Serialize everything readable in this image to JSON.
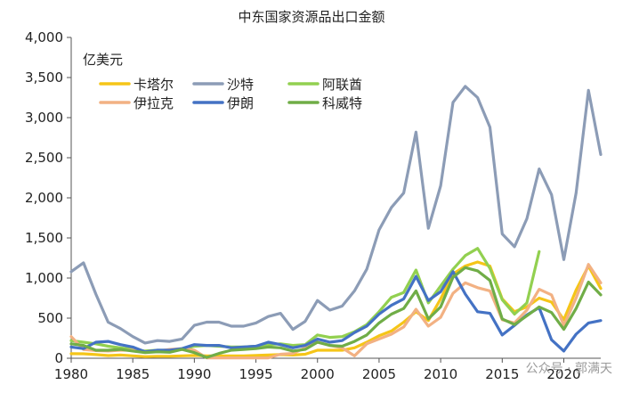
{
  "title": "中东国家资源品出口金额",
  "unit_label": "亿美元",
  "watermark": "公众号 · 郭满天",
  "chart_data": {
    "type": "line",
    "title": "中东国家资源品出口金额",
    "ylabel": "亿美元",
    "xlim": [
      1980,
      2023
    ],
    "ylim": [
      0,
      4000
    ],
    "x_ticks": [
      1980,
      1985,
      1990,
      1995,
      2000,
      2005,
      2010,
      2015,
      2020
    ],
    "y_ticks": [
      0,
      500,
      1000,
      1500,
      2000,
      2500,
      3000,
      3500,
      4000
    ],
    "y_tick_labels": [
      "0",
      "500",
      "1,000",
      "1,500",
      "2,000",
      "2,500",
      "3,000",
      "3,500",
      "4,000"
    ],
    "grid": false,
    "legend_position": "top-left",
    "series": [
      {
        "name": "卡塔尔",
        "color": "#f5c518",
        "x": [
          1980,
          1981,
          1982,
          1983,
          1984,
          1985,
          1986,
          1987,
          1988,
          1989,
          1990,
          1991,
          1992,
          1993,
          1994,
          1995,
          1996,
          1997,
          1998,
          1999,
          2000,
          2001,
          2002,
          2003,
          2004,
          2005,
          2006,
          2007,
          2008,
          2009,
          2010,
          2011,
          2012,
          2013,
          2014,
          2015,
          2016,
          2017,
          2018,
          2019,
          2020,
          2021,
          2022,
          2023
        ],
        "y": [
          57,
          56,
          45,
          33,
          40,
          30,
          20,
          25,
          25,
          30,
          35,
          30,
          30,
          30,
          30,
          35,
          40,
          45,
          40,
          50,
          100,
          100,
          100,
          130,
          200,
          280,
          340,
          450,
          580,
          470,
          740,
          1050,
          1150,
          1200,
          1150,
          740,
          580,
          640,
          750,
          700,
          480,
          850,
          1150,
          870
        ]
      },
      {
        "name": "沙特",
        "color": "#8c9cb6",
        "x": [
          1980,
          1981,
          1982,
          1983,
          1984,
          1985,
          1986,
          1987,
          1988,
          1989,
          1990,
          1991,
          1992,
          1993,
          1994,
          1995,
          1996,
          1997,
          1998,
          1999,
          2000,
          2001,
          2002,
          2003,
          2004,
          2005,
          2006,
          2007,
          2008,
          2009,
          2010,
          2011,
          2012,
          2013,
          2014,
          2015,
          2016,
          2017,
          2018,
          2019,
          2020,
          2021,
          2022,
          2023
        ],
        "y": [
          1080,
          1190,
          800,
          450,
          370,
          270,
          190,
          220,
          210,
          240,
          410,
          450,
          450,
          400,
          400,
          440,
          520,
          560,
          360,
          460,
          720,
          600,
          650,
          840,
          1110,
          1600,
          1880,
          2060,
          2820,
          1620,
          2150,
          3190,
          3390,
          3250,
          2880,
          1550,
          1390,
          1740,
          2360,
          2040,
          1230,
          2060,
          3340,
          2540
        ]
      },
      {
        "name": "阿联酋",
        "color": "#92d050",
        "x": [
          1980,
          1981,
          1982,
          1983,
          1984,
          1985,
          1986,
          1987,
          1988,
          1989,
          1990,
          1991,
          1992,
          1993,
          1994,
          1995,
          1996,
          1997,
          1998,
          1999,
          2000,
          2001,
          2002,
          2003,
          2004,
          2005,
          2006,
          2007,
          2008,
          2009,
          2010,
          2011,
          2012,
          2013,
          2014,
          2015,
          2016,
          2017,
          2018
        ],
        "y": [
          220,
          200,
          180,
          150,
          130,
          110,
          90,
          100,
          100,
          110,
          150,
          160,
          150,
          140,
          140,
          150,
          170,
          180,
          160,
          170,
          290,
          260,
          270,
          330,
          420,
          580,
          760,
          820,
          1100,
          690,
          900,
          1110,
          1280,
          1370,
          1120,
          730,
          550,
          690,
          1330
        ]
      },
      {
        "name": "伊拉克",
        "color": "#f2b183",
        "x": [
          1980,
          1981,
          1982,
          1983,
          1984,
          1985,
          1986,
          1987,
          1988,
          1989,
          1990,
          1991,
          1992,
          1993,
          1994,
          1995,
          1996,
          1997,
          1998,
          1999,
          2000,
          2001,
          2002,
          2003,
          2004,
          2005,
          2006,
          2007,
          2008,
          2009,
          2010,
          2011,
          2012,
          2013,
          2014,
          2015,
          2016,
          2017,
          2018,
          2019,
          2020,
          2021,
          2022,
          2023
        ],
        "y": [
          270,
          110,
          95,
          90,
          100,
          100,
          80,
          90,
          110,
          120,
          100,
          5,
          5,
          5,
          5,
          5,
          5,
          50,
          60,
          130,
          200,
          160,
          130,
          30,
          180,
          240,
          300,
          390,
          610,
          400,
          510,
          810,
          940,
          880,
          840,
          480,
          440,
          600,
          860,
          790,
          410,
          750,
          1170,
          940
        ]
      },
      {
        "name": "伊朗",
        "color": "#4472c4",
        "x": [
          1980,
          1981,
          1982,
          1983,
          1984,
          1985,
          1986,
          1987,
          1988,
          1989,
          1990,
          1991,
          1992,
          1993,
          1994,
          1995,
          1996,
          1997,
          1998,
          1999,
          2000,
          2001,
          2002,
          2003,
          2004,
          2005,
          2006,
          2007,
          2008,
          2009,
          2010,
          2011,
          2012,
          2013,
          2014,
          2015,
          2016,
          2017,
          2018,
          2019,
          2020,
          2021,
          2022,
          2023
        ],
        "y": [
          140,
          120,
          200,
          210,
          170,
          140,
          80,
          100,
          100,
          120,
          170,
          160,
          160,
          130,
          140,
          150,
          200,
          170,
          130,
          160,
          240,
          200,
          220,
          320,
          400,
          550,
          660,
          740,
          1020,
          720,
          830,
          1080,
          800,
          580,
          560,
          290,
          410,
          540,
          630,
          230,
          90,
          300,
          440,
          470
        ]
      },
      {
        "name": "科威特",
        "color": "#70ad47",
        "x": [
          1980,
          1981,
          1982,
          1983,
          1984,
          1985,
          1986,
          1987,
          1988,
          1989,
          1990,
          1991,
          1992,
          1993,
          1994,
          1995,
          1996,
          1997,
          1998,
          1999,
          2000,
          2001,
          2002,
          2003,
          2004,
          2005,
          2006,
          2007,
          2008,
          2009,
          2010,
          2011,
          2012,
          2013,
          2014,
          2015,
          2016,
          2017,
          2018,
          2019,
          2020,
          2021,
          2022,
          2023
        ],
        "y": [
          180,
          160,
          100,
          100,
          110,
          90,
          70,
          80,
          75,
          110,
          70,
          10,
          60,
          100,
          110,
          120,
          140,
          130,
          90,
          110,
          200,
          160,
          150,
          210,
          290,
          440,
          550,
          620,
          840,
          490,
          640,
          1010,
          1130,
          1090,
          970,
          490,
          420,
          530,
          640,
          570,
          360,
          620,
          950,
          790
        ]
      }
    ]
  }
}
